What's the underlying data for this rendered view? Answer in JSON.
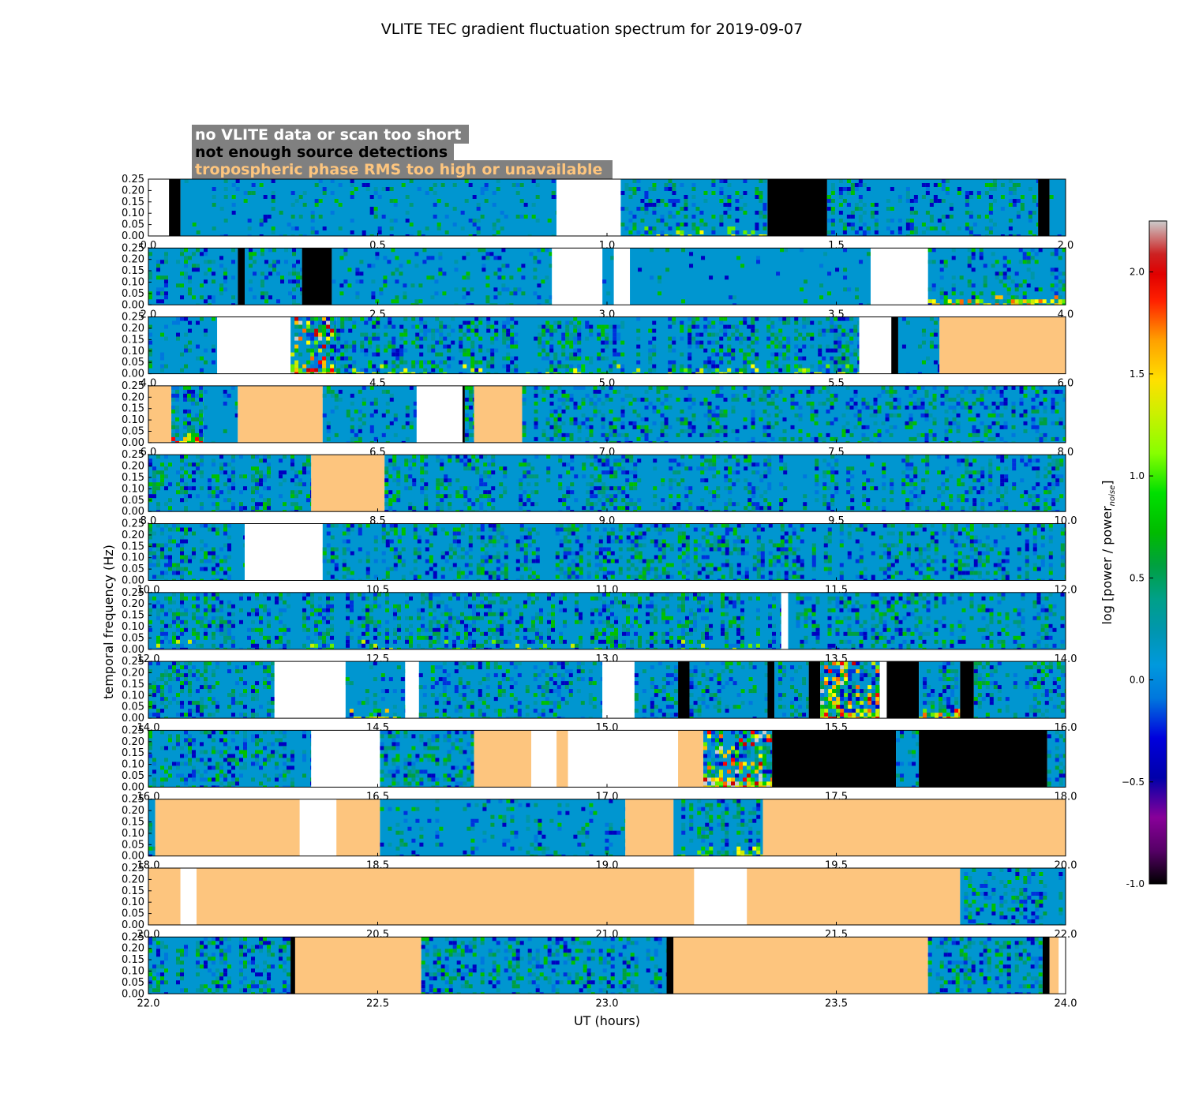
{
  "chart_data": {
    "type": "heatmap",
    "title": "VLITE TEC gradient fluctuation spectrum for 2019-09-07",
    "xlabel": "UT (hours)",
    "ylabel": "temporal frequency (Hz)",
    "colorbar": {
      "label": "log [power / power",
      "label_subscript": "noise",
      "label_end": "]",
      "range": [
        -1.0,
        2.25
      ],
      "ticks": [
        "-1.0",
        "−0.5",
        "0.0",
        "0.5",
        "1.0",
        "1.5",
        "2.0"
      ],
      "colormap": "nipy_spectral"
    },
    "legend": {
      "placement": "top-left",
      "entries": [
        {
          "label": "no VLITE data or scan too short",
          "text_color": "#ffffff"
        },
        {
          "label": "not enough source detections",
          "text_color": "#000000"
        },
        {
          "label": "tropospheric phase RMS too high or unavailable",
          "text_color": "#fdc57e"
        }
      ],
      "background": "#808080"
    },
    "yticks": [
      "0.00",
      "0.05",
      "0.10",
      "0.15",
      "0.20",
      "0.25"
    ],
    "ylim": [
      0,
      0.25
    ],
    "colors": {
      "no_data": "#ffffff",
      "few_detections": "#000000",
      "trop_rms_high": "#fdc57e",
      "baseline_power": "#0096d0"
    },
    "panels": [
      {
        "xlim": [
          0.0,
          2.0
        ],
        "xticks": [
          "0.0",
          "0.5",
          "1.0",
          "1.5",
          "2.0"
        ],
        "segments": [
          {
            "start": 0.0,
            "end": 0.045,
            "kind": "white"
          },
          {
            "start": 0.045,
            "end": 0.07,
            "kind": "black"
          },
          {
            "start": 0.07,
            "end": 0.89,
            "kind": "data",
            "level": 0.25
          },
          {
            "start": 0.89,
            "end": 1.03,
            "kind": "white"
          },
          {
            "start": 1.03,
            "end": 1.35,
            "kind": "data",
            "level": 0.45,
            "hot": 0.3
          },
          {
            "start": 1.35,
            "end": 1.48,
            "kind": "black"
          },
          {
            "start": 1.48,
            "end": 1.94,
            "kind": "data",
            "level": 0.5
          },
          {
            "start": 1.94,
            "end": 1.965,
            "kind": "black"
          },
          {
            "start": 1.965,
            "end": 2.0,
            "kind": "data",
            "level": 0.2
          }
        ]
      },
      {
        "xlim": [
          2.0,
          4.0
        ],
        "xticks": [
          "2.0",
          "2.5",
          "3.0",
          "3.5",
          "4.0"
        ],
        "segments": [
          {
            "start": 2.0,
            "end": 2.195,
            "kind": "data",
            "level": 0.5
          },
          {
            "start": 2.195,
            "end": 2.21,
            "kind": "black"
          },
          {
            "start": 2.21,
            "end": 2.335,
            "kind": "data",
            "level": 0.5
          },
          {
            "start": 2.335,
            "end": 2.4,
            "kind": "black"
          },
          {
            "start": 2.4,
            "end": 2.88,
            "kind": "data",
            "level": 0.3
          },
          {
            "start": 2.88,
            "end": 2.99,
            "kind": "white"
          },
          {
            "start": 2.99,
            "end": 3.015,
            "kind": "data",
            "level": 0.3
          },
          {
            "start": 3.015,
            "end": 3.05,
            "kind": "white"
          },
          {
            "start": 3.05,
            "end": 3.575,
            "kind": "data",
            "level": 0.08
          },
          {
            "start": 3.575,
            "end": 3.7,
            "kind": "white"
          },
          {
            "start": 3.7,
            "end": 4.0,
            "kind": "data",
            "level": 0.5,
            "hot": 0.6
          }
        ]
      },
      {
        "xlim": [
          4.0,
          6.0
        ],
        "xticks": [
          "4.0",
          "4.5",
          "5.0",
          "5.5",
          "6.0"
        ],
        "segments": [
          {
            "start": 4.0,
            "end": 4.15,
            "kind": "data",
            "level": 0.3
          },
          {
            "start": 4.15,
            "end": 4.31,
            "kind": "white"
          },
          {
            "start": 4.31,
            "end": 4.41,
            "kind": "data",
            "level": 0.95,
            "hot": 1.0
          },
          {
            "start": 4.41,
            "end": 5.55,
            "kind": "data",
            "level": 0.65,
            "hot": 0.25
          },
          {
            "start": 5.55,
            "end": 5.62,
            "kind": "white"
          },
          {
            "start": 5.62,
            "end": 5.635,
            "kind": "black"
          },
          {
            "start": 5.635,
            "end": 5.725,
            "kind": "data",
            "level": 0.3
          },
          {
            "start": 5.725,
            "end": 6.0,
            "kind": "trop"
          }
        ]
      },
      {
        "xlim": [
          6.0,
          8.0
        ],
        "xticks": [
          "6.0",
          "6.5",
          "7.0",
          "7.5",
          "8.0"
        ],
        "segments": [
          {
            "start": 6.0,
            "end": 6.05,
            "kind": "trop"
          },
          {
            "start": 6.05,
            "end": 6.12,
            "kind": "data",
            "level": 0.8,
            "hot": 0.7
          },
          {
            "start": 6.12,
            "end": 6.195,
            "kind": "data",
            "level": 0.2
          },
          {
            "start": 6.195,
            "end": 6.38,
            "kind": "trop"
          },
          {
            "start": 6.38,
            "end": 6.585,
            "kind": "data",
            "level": 0.4
          },
          {
            "start": 6.585,
            "end": 6.685,
            "kind": "white"
          },
          {
            "start": 6.685,
            "end": 6.69,
            "kind": "black"
          },
          {
            "start": 6.69,
            "end": 6.71,
            "kind": "data",
            "level": 0.8
          },
          {
            "start": 6.71,
            "end": 6.815,
            "kind": "trop"
          },
          {
            "start": 6.815,
            "end": 8.0,
            "kind": "data",
            "level": 0.55
          }
        ]
      },
      {
        "xlim": [
          8.0,
          10.0
        ],
        "xticks": [
          "8.0",
          "8.5",
          "9.0",
          "9.5",
          "10.0"
        ],
        "segments": [
          {
            "start": 8.0,
            "end": 8.355,
            "kind": "data",
            "level": 0.6
          },
          {
            "start": 8.355,
            "end": 8.515,
            "kind": "trop"
          },
          {
            "start": 8.515,
            "end": 10.0,
            "kind": "data",
            "level": 0.6
          }
        ]
      },
      {
        "xlim": [
          10.0,
          12.0
        ],
        "xticks": [
          "10.0",
          "10.5",
          "11.0",
          "11.5",
          "12.0"
        ],
        "segments": [
          {
            "start": 10.0,
            "end": 10.21,
            "kind": "data",
            "level": 0.6
          },
          {
            "start": 10.21,
            "end": 10.38,
            "kind": "white"
          },
          {
            "start": 10.38,
            "end": 12.0,
            "kind": "data",
            "level": 0.65
          }
        ]
      },
      {
        "xlim": [
          12.0,
          14.0
        ],
        "xticks": [
          "12.0",
          "12.5",
          "13.0",
          "13.5",
          "14.0"
        ],
        "segments": [
          {
            "start": 12.0,
            "end": 13.38,
            "kind": "data",
            "level": 0.7,
            "hot": 0.1
          },
          {
            "start": 13.38,
            "end": 13.395,
            "kind": "white"
          },
          {
            "start": 13.395,
            "end": 14.0,
            "kind": "data",
            "level": 0.6
          }
        ]
      },
      {
        "xlim": [
          14.0,
          16.0
        ],
        "xticks": [
          "14.0",
          "14.5",
          "15.0",
          "15.5",
          "16.0"
        ],
        "segments": [
          {
            "start": 14.0,
            "end": 14.275,
            "kind": "data",
            "level": 0.6
          },
          {
            "start": 14.275,
            "end": 14.43,
            "kind": "white"
          },
          {
            "start": 14.43,
            "end": 14.56,
            "kind": "data",
            "level": 0.25,
            "hot": 0.4
          },
          {
            "start": 14.56,
            "end": 14.59,
            "kind": "white"
          },
          {
            "start": 14.59,
            "end": 14.99,
            "kind": "data",
            "level": 0.55
          },
          {
            "start": 14.99,
            "end": 15.06,
            "kind": "white"
          },
          {
            "start": 15.06,
            "end": 15.155,
            "kind": "data",
            "level": 0.5
          },
          {
            "start": 15.155,
            "end": 15.18,
            "kind": "black"
          },
          {
            "start": 15.18,
            "end": 15.35,
            "kind": "data",
            "level": 0.5
          },
          {
            "start": 15.35,
            "end": 15.365,
            "kind": "black"
          },
          {
            "start": 15.365,
            "end": 15.44,
            "kind": "data",
            "level": 0.5
          },
          {
            "start": 15.44,
            "end": 15.465,
            "kind": "black"
          },
          {
            "start": 15.465,
            "end": 15.595,
            "kind": "data",
            "level": 0.85,
            "hot": 0.9
          },
          {
            "start": 15.595,
            "end": 15.61,
            "kind": "white"
          },
          {
            "start": 15.61,
            "end": 15.68,
            "kind": "black"
          },
          {
            "start": 15.68,
            "end": 15.77,
            "kind": "data",
            "level": 0.8,
            "hot": 0.8
          },
          {
            "start": 15.77,
            "end": 15.8,
            "kind": "black"
          },
          {
            "start": 15.8,
            "end": 16.0,
            "kind": "data",
            "level": 0.55
          }
        ]
      },
      {
        "xlim": [
          16.0,
          18.0
        ],
        "xticks": [
          "16.0",
          "16.5",
          "17.0",
          "17.5",
          "18.0"
        ],
        "segments": [
          {
            "start": 16.0,
            "end": 16.355,
            "kind": "data",
            "level": 0.55
          },
          {
            "start": 16.355,
            "end": 16.505,
            "kind": "white"
          },
          {
            "start": 16.505,
            "end": 16.71,
            "kind": "data",
            "level": 0.65
          },
          {
            "start": 16.71,
            "end": 16.835,
            "kind": "trop"
          },
          {
            "start": 16.835,
            "end": 16.89,
            "kind": "white"
          },
          {
            "start": 16.89,
            "end": 16.915,
            "kind": "trop"
          },
          {
            "start": 16.915,
            "end": 17.155,
            "kind": "white"
          },
          {
            "start": 17.155,
            "end": 17.21,
            "kind": "trop"
          },
          {
            "start": 17.21,
            "end": 17.36,
            "kind": "data",
            "level": 0.85,
            "hot": 1.0
          },
          {
            "start": 17.36,
            "end": 17.63,
            "kind": "black"
          },
          {
            "start": 17.63,
            "end": 17.68,
            "kind": "data",
            "level": 0.4
          },
          {
            "start": 17.68,
            "end": 17.96,
            "kind": "black"
          },
          {
            "start": 17.96,
            "end": 18.0,
            "kind": "data",
            "level": 0.6
          }
        ]
      },
      {
        "xlim": [
          18.0,
          20.0
        ],
        "xticks": [
          "18.0",
          "18.5",
          "19.0",
          "19.5",
          "20.0"
        ],
        "segments": [
          {
            "start": 18.0,
            "end": 18.015,
            "kind": "data",
            "level": 0.3
          },
          {
            "start": 18.015,
            "end": 18.33,
            "kind": "trop"
          },
          {
            "start": 18.33,
            "end": 18.41,
            "kind": "white"
          },
          {
            "start": 18.41,
            "end": 18.505,
            "kind": "trop"
          },
          {
            "start": 18.505,
            "end": 19.04,
            "kind": "data",
            "level": 0.3
          },
          {
            "start": 19.04,
            "end": 19.145,
            "kind": "trop"
          },
          {
            "start": 19.145,
            "end": 19.34,
            "kind": "data",
            "level": 0.7,
            "hot": 0.3
          },
          {
            "start": 19.34,
            "end": 20.0,
            "kind": "trop"
          }
        ]
      },
      {
        "xlim": [
          20.0,
          22.0
        ],
        "xticks": [
          "20.0",
          "20.5",
          "21.0",
          "21.5",
          "22.0"
        ],
        "segments": [
          {
            "start": 20.0,
            "end": 20.07,
            "kind": "trop"
          },
          {
            "start": 20.07,
            "end": 20.105,
            "kind": "white"
          },
          {
            "start": 20.105,
            "end": 21.19,
            "kind": "trop"
          },
          {
            "start": 21.19,
            "end": 21.305,
            "kind": "white"
          },
          {
            "start": 21.305,
            "end": 21.77,
            "kind": "trop"
          },
          {
            "start": 21.77,
            "end": 22.0,
            "kind": "data",
            "level": 0.6
          }
        ]
      },
      {
        "xlim": [
          22.0,
          24.0
        ],
        "xticks": [
          "22.0",
          "22.5",
          "23.0",
          "23.5",
          "24.0"
        ],
        "segments": [
          {
            "start": 22.0,
            "end": 22.31,
            "kind": "data",
            "level": 0.65
          },
          {
            "start": 22.31,
            "end": 22.32,
            "kind": "black"
          },
          {
            "start": 22.32,
            "end": 22.595,
            "kind": "trop"
          },
          {
            "start": 22.595,
            "end": 23.13,
            "kind": "data",
            "level": 0.65
          },
          {
            "start": 23.13,
            "end": 23.145,
            "kind": "black"
          },
          {
            "start": 23.145,
            "end": 23.7,
            "kind": "trop"
          },
          {
            "start": 23.7,
            "end": 23.95,
            "kind": "data",
            "level": 0.65
          },
          {
            "start": 23.95,
            "end": 23.965,
            "kind": "black"
          },
          {
            "start": 23.965,
            "end": 23.985,
            "kind": "trop"
          },
          {
            "start": 23.985,
            "end": 24.0,
            "kind": "white"
          }
        ]
      }
    ]
  }
}
